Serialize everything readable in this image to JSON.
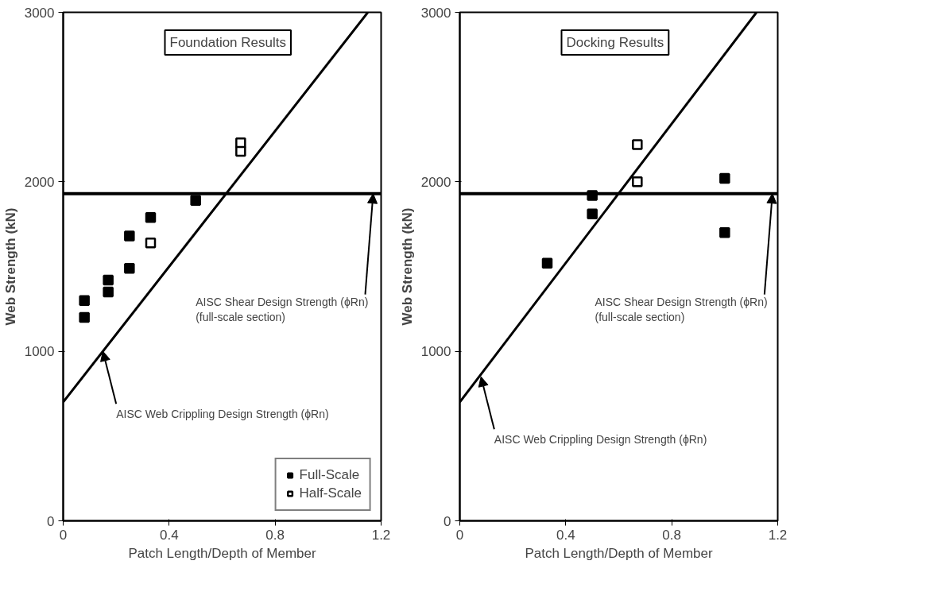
{
  "chart_data": [
    {
      "type": "scatter",
      "title": "Foundation Results",
      "xlabel": "Patch Length/Depth of Member",
      "ylabel": "Web Strength (kN)",
      "xlim": [
        0,
        1.2
      ],
      "ylim": [
        0,
        3000
      ],
      "xticks": [
        0,
        0.4,
        0.8,
        1.2
      ],
      "yticks": [
        0,
        1000,
        2000,
        3000
      ],
      "grid": false,
      "legend": "bottom right",
      "series": [
        {
          "name": "Full-Scale",
          "color": "#000000",
          "marker": "square",
          "x": [
            0.08,
            0.08,
            0.17,
            0.17,
            0.25,
            0.25,
            0.33,
            0.5
          ],
          "values": [
            1300,
            1200,
            1420,
            1350,
            1680,
            1490,
            1790,
            1890
          ]
        },
        {
          "name": "Half-Scale",
          "color": "#ffffff",
          "marker": "square",
          "x": [
            0.33,
            0.67,
            0.67
          ],
          "values": [
            1640,
            2230,
            2180
          ]
        },
        {
          "type": "line",
          "color": "#000000",
          "x": [
            0,
            1.15
          ],
          "values": [
            700,
            3000
          ]
        }
      ],
      "ref_lines": [
        {
          "axis": "y",
          "value": 1930,
          "color": "#000000"
        }
      ],
      "annotations": [
        {
          "text": "AISC Shear Design Strength (ϕRn)\n(full-scale section)",
          "x": 1.17,
          "y": 1930
        },
        {
          "text": "AISC Web Crippling Design Strength (ϕRn)",
          "x": 0.15,
          "y": 1000
        }
      ]
    },
    {
      "type": "scatter",
      "title": "Docking Results",
      "xlabel": "Patch Length/Depth of Member",
      "ylabel": "Web Strength (kN)",
      "xlim": [
        0,
        1.2
      ],
      "ylim": [
        0,
        3000
      ],
      "xticks": [
        0,
        0.4,
        0.8,
        1.2
      ],
      "yticks": [
        0,
        1000,
        2000,
        3000
      ],
      "grid": false,
      "series": [
        {
          "color": "#000000",
          "marker": "square",
          "x": [
            0.33,
            0.5,
            0.5,
            1.0,
            1.0
          ],
          "values": [
            1520,
            1810,
            1920,
            2020,
            1700
          ]
        },
        {
          "color": "#ffffff",
          "marker": "square",
          "x": [
            0.67,
            0.67
          ],
          "values": [
            2220,
            2000
          ]
        },
        {
          "type": "line",
          "color": "#000000",
          "x": [
            0,
            1.12
          ],
          "values": [
            700,
            3000
          ]
        }
      ],
      "ref_lines": [
        {
          "axis": "y",
          "value": 1930,
          "color": "#000000"
        }
      ],
      "annotations": [
        {
          "text": "AISC Shear Design Strength (ϕRn)\n(full-scale section)",
          "x": 1.18,
          "y": 1930
        },
        {
          "text": "AISC Web Crippling Design Strength (ϕRn)",
          "x": 0.08,
          "y": 850
        }
      ]
    }
  ]
}
